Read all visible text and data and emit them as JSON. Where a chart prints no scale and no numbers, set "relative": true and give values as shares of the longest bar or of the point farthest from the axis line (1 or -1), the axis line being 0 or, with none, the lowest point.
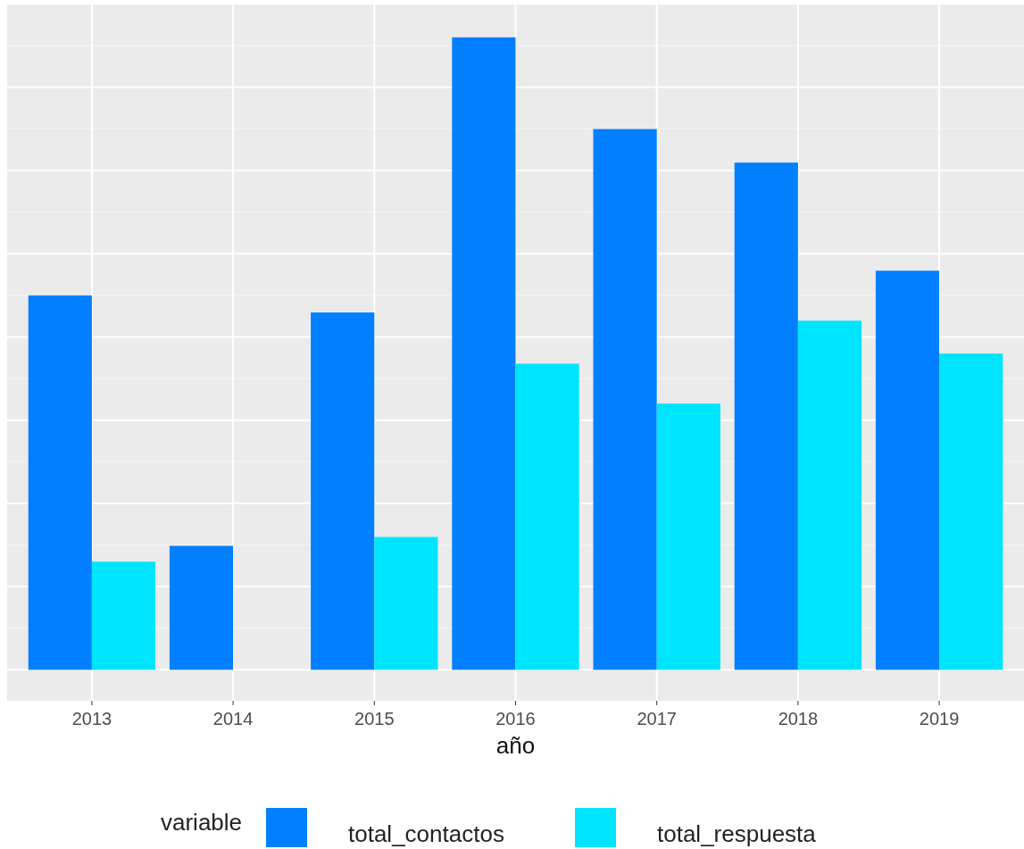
{
  "chart_data": {
    "type": "bar",
    "relative": true,
    "xlabel": "año",
    "legend_title": "variable",
    "legend": "bottom",
    "grid": true,
    "categories": [
      "2013",
      "2014",
      "2015",
      "2016",
      "2017",
      "2018",
      "2019"
    ],
    "series": [
      {
        "name": "total_contactos",
        "color": "#0080ff",
        "values": [
          0.592,
          0.196,
          0.565,
          1,
          0.855,
          0.802,
          0.631
        ]
      },
      {
        "name": "total_respuesta",
        "color": "#00e5ff",
        "values": [
          0.171,
          null,
          0.21,
          0.484,
          0.421,
          0.552,
          0.5
        ]
      }
    ]
  }
}
